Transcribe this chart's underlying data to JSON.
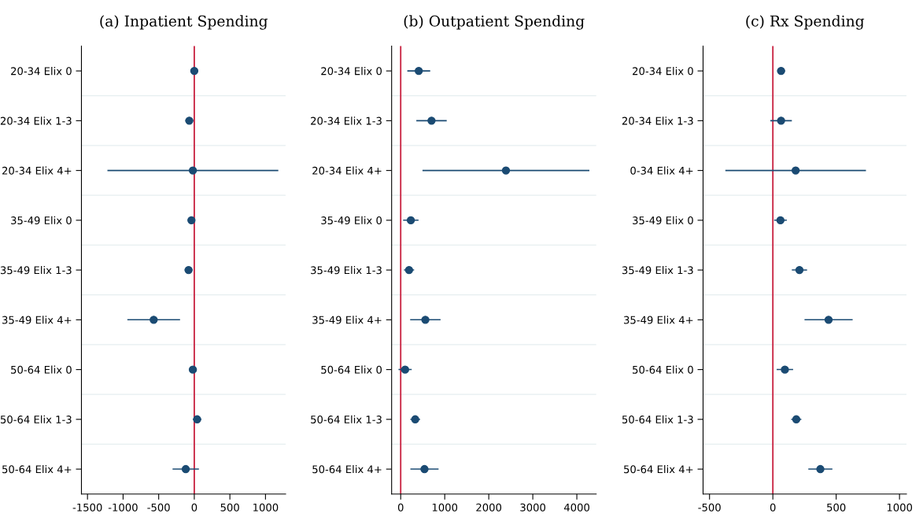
{
  "chart_data": [
    {
      "type": "scatter",
      "title": "(a) Inpatient Spending",
      "orientation": "horizontal",
      "marker": "circle",
      "grid": "y",
      "color": "#1b4b73",
      "categories": [
        "20-34 Elix 0",
        "20-34 Elix 1-3",
        "20-34 Elix 4+",
        "35-49 Elix 0",
        "35-49 Elix 1-3",
        "35-49 Elix 4+",
        "50-64 Elix 0",
        "50-64 Elix 1-3",
        "50-64 Elix 4+"
      ],
      "values": [
        0,
        -70,
        -20,
        -40,
        -80,
        -570,
        -20,
        40,
        -120
      ],
      "errors": [
        30,
        55,
        1200,
        50,
        55,
        370,
        50,
        60,
        185
      ],
      "xlim": [
        -1585,
        1283
      ],
      "xticks": [
        -1500,
        -1000,
        -500,
        0,
        500,
        1000
      ],
      "ref_lines": [
        {
          "axis": "x",
          "value": 0,
          "label": null,
          "color": "#c8203f"
        }
      ]
    },
    {
      "type": "scatter",
      "title": "(b) Outpatient Spending",
      "orientation": "horizontal",
      "marker": "circle",
      "grid": "y",
      "color": "#1b4b73",
      "categories": [
        "20-34 Elix 0",
        "20-34 Elix 1-3",
        "20-34 Elix 4+",
        "35-49 Elix 0",
        "35-49 Elix 1-3",
        "35-49 Elix 4+",
        "50-64 Elix 0",
        "50-64 Elix 1-3",
        "50-64 Elix 4+"
      ],
      "values": [
        410,
        700,
        2390,
        230,
        190,
        560,
        100,
        330,
        540
      ],
      "errors": [
        260,
        345,
        1895,
        175,
        115,
        345,
        150,
        110,
        320
      ],
      "xlim": [
        -206,
        4440
      ],
      "xticks": [
        0,
        1000,
        2000,
        3000,
        4000
      ],
      "ref_lines": [
        {
          "axis": "x",
          "value": 0,
          "label": null,
          "color": "#c8203f"
        }
      ]
    },
    {
      "type": "scatter",
      "title": "(c) Rx Spending",
      "orientation": "horizontal",
      "marker": "circle",
      "grid": "y",
      "color": "#1b4b73",
      "categories": [
        "20-34 Elix 0",
        "20-34 Elix 1-3",
        "0-34 Elix 4+",
        "35-49 Elix 0",
        "35-49 Elix 1-3",
        "35-49 Elix 4+",
        "50-64 Elix 0",
        "50-64 Elix 1-3",
        "50-64 Elix 4+"
      ],
      "values": [
        65,
        65,
        180,
        60,
        210,
        440,
        95,
        185,
        375
      ],
      "errors": [
        30,
        85,
        555,
        50,
        60,
        190,
        65,
        40,
        95
      ],
      "xlim": [
        -551,
        1055
      ],
      "xticks": [
        -500,
        0,
        500,
        1000
      ],
      "ref_lines": [
        {
          "axis": "x",
          "value": 0,
          "label": null,
          "color": "#c8203f"
        }
      ]
    }
  ]
}
